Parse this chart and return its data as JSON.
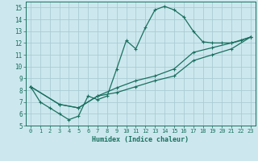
{
  "xlabel": "Humidex (Indice chaleur)",
  "bg_color": "#cce8ee",
  "grid_color": "#aaccd4",
  "line_color": "#1a7060",
  "xlim": [
    -0.5,
    23.5
  ],
  "ylim": [
    5,
    15.5
  ],
  "xtick_labels": [
    "0",
    "1",
    "2",
    "3",
    "4",
    "5",
    "6",
    "7",
    "8",
    "9",
    "10",
    "11",
    "12",
    "13",
    "14",
    "15",
    "16",
    "17",
    "18",
    "19",
    "20",
    "21",
    "22",
    "23"
  ],
  "xticks": [
    0,
    1,
    2,
    3,
    4,
    5,
    6,
    7,
    8,
    9,
    10,
    11,
    12,
    13,
    14,
    15,
    16,
    17,
    18,
    19,
    20,
    21,
    22,
    23
  ],
  "yticks": [
    5,
    6,
    7,
    8,
    9,
    10,
    11,
    12,
    13,
    14,
    15
  ],
  "line1_x": [
    0,
    1,
    2,
    3,
    4,
    5,
    6,
    7,
    8,
    9,
    10,
    11,
    12,
    13,
    14,
    15,
    16,
    17,
    18,
    19,
    20,
    21,
    22,
    23
  ],
  "line1_y": [
    8.3,
    7.0,
    6.5,
    6.0,
    5.5,
    5.8,
    7.5,
    7.2,
    7.5,
    9.8,
    12.2,
    11.5,
    13.3,
    14.8,
    15.1,
    14.8,
    14.2,
    13.0,
    12.1,
    12.0,
    12.0,
    12.0,
    12.2,
    12.5
  ],
  "line2_x": [
    0,
    3,
    5,
    7,
    9,
    11,
    13,
    15,
    17,
    19,
    21,
    23
  ],
  "line2_y": [
    8.3,
    6.8,
    6.5,
    7.5,
    8.2,
    8.8,
    9.2,
    9.8,
    11.2,
    11.6,
    12.0,
    12.5
  ],
  "line3_x": [
    0,
    3,
    5,
    7,
    9,
    11,
    13,
    15,
    17,
    19,
    21,
    23
  ],
  "line3_y": [
    8.3,
    6.8,
    6.5,
    7.5,
    7.8,
    8.3,
    8.8,
    9.2,
    10.5,
    11.0,
    11.5,
    12.5
  ]
}
